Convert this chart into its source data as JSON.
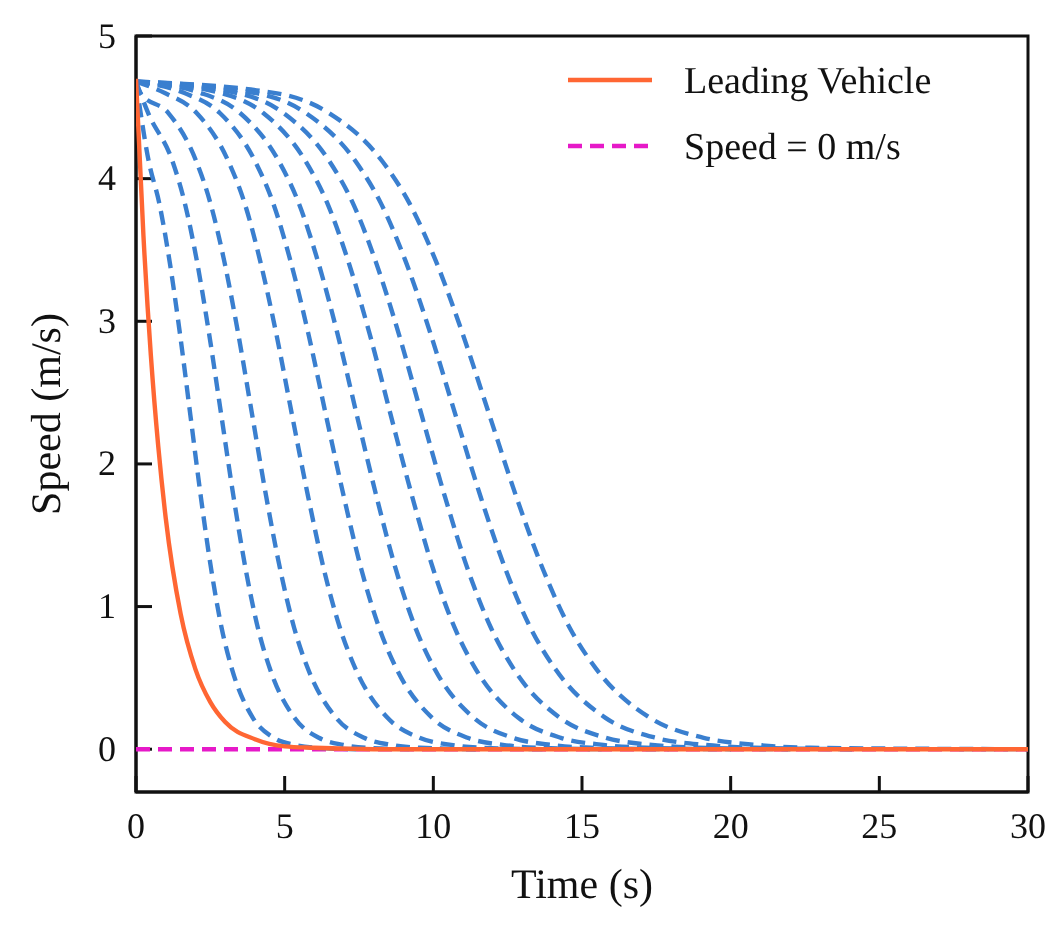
{
  "chart_data": {
    "type": "line",
    "xlabel": "Time (s)",
    "ylabel": "Speed (m/s)",
    "xlim": [
      0,
      30
    ],
    "ylim": [
      -0.3,
      5
    ],
    "xticks": [
      0,
      5,
      10,
      15,
      20,
      25,
      30
    ],
    "yticks": [
      0,
      1,
      2,
      3,
      4,
      5
    ],
    "grid": false,
    "ref_lines": [
      {
        "axis": "y",
        "value": 0,
        "label": "Speed = 0 m/s",
        "color": "#e619c8",
        "line_style": "dashed"
      }
    ],
    "legend": "top right",
    "marker": "none",
    "series": [
      {
        "name": "Leading Vehicle",
        "color": "#ff6633",
        "line_style": "solid",
        "x": [
          0,
          0.25,
          0.5,
          0.75,
          1,
          1.5,
          2,
          2.5,
          3,
          4,
          5,
          6,
          8,
          30
        ],
        "values": [
          4.7,
          3.6,
          2.76,
          2.12,
          1.62,
          0.95,
          0.56,
          0.33,
          0.19,
          0.07,
          0.02,
          0.01,
          0,
          0
        ]
      },
      {
        "color": "#3a7fcf",
        "line_style": "dashed",
        "x": [
          0,
          0.43,
          0.78,
          1.13,
          1.48,
          1.83,
          2.18,
          2.53,
          2.88,
          3.23,
          3.93,
          4.63,
          5.33,
          6.03,
          7.43
        ],
        "values": [
          4.68,
          4.12,
          3.83,
          3.42,
          2.91,
          2.34,
          1.77,
          1.26,
          0.85,
          0.56,
          0.22,
          0.08,
          0.03,
          0.01,
          0
        ]
      },
      {
        "color": "#3a7fcf",
        "line_style": "dashed",
        "x": [
          0,
          0.41,
          1.23,
          1.64,
          2.05,
          2.46,
          2.87,
          3.28,
          3.69,
          4.1,
          4.51,
          5.33,
          6.15,
          6.97,
          7.79,
          9.43
        ],
        "values": [
          4.68,
          4.46,
          4.12,
          3.83,
          3.42,
          2.91,
          2.34,
          1.77,
          1.26,
          0.85,
          0.56,
          0.22,
          0.08,
          0.03,
          0.01,
          0
        ]
      },
      {
        "color": "#3a7fcf",
        "line_style": "dashed",
        "x": [
          0,
          0.15,
          1.09,
          2.03,
          2.5,
          2.97,
          3.44,
          3.91,
          4.38,
          4.85,
          5.32,
          5.79,
          6.73,
          7.67,
          8.61,
          9.55,
          11.43
        ],
        "values": [
          4.68,
          4.6,
          4.46,
          4.12,
          3.83,
          3.42,
          2.91,
          2.34,
          1.77,
          1.26,
          0.85,
          0.56,
          0.22,
          0.08,
          0.03,
          0.01,
          0
        ]
      },
      {
        "color": "#3a7fcf",
        "line_style": "dashed",
        "x": [
          0,
          0.97,
          2.04,
          3.11,
          3.65,
          4.18,
          4.72,
          5.25,
          5.79,
          6.32,
          6.86,
          7.39,
          8.46,
          9.53,
          10.6,
          11.67,
          13.81
        ],
        "values": [
          4.68,
          4.6,
          4.46,
          4.12,
          3.83,
          3.42,
          2.91,
          2.34,
          1.77,
          1.26,
          0.85,
          0.56,
          0.22,
          0.08,
          0.03,
          0.01,
          0
        ]
      },
      {
        "color": "#3a7fcf",
        "line_style": "dashed",
        "x": [
          0,
          1.63,
          2.82,
          4.01,
          4.61,
          5.2,
          5.8,
          6.39,
          6.99,
          7.58,
          8.18,
          8.77,
          9.96,
          11.15,
          12.34,
          13.53,
          15.91
        ],
        "values": [
          4.68,
          4.6,
          4.46,
          4.12,
          3.83,
          3.42,
          2.91,
          2.34,
          1.77,
          1.26,
          0.85,
          0.56,
          0.22,
          0.08,
          0.03,
          0.01,
          0
        ]
      },
      {
        "color": "#3a7fcf",
        "line_style": "dashed",
        "x": [
          0,
          2.19,
          3.5,
          4.81,
          5.47,
          6.12,
          6.78,
          7.43,
          8.09,
          8.74,
          9.4,
          10.05,
          11.36,
          12.67,
          13.98,
          15.29,
          17.91
        ],
        "values": [
          4.68,
          4.6,
          4.46,
          4.12,
          3.83,
          3.42,
          2.91,
          2.34,
          1.77,
          1.26,
          0.85,
          0.56,
          0.22,
          0.08,
          0.03,
          0.01,
          0
        ]
      },
      {
        "color": "#3a7fcf",
        "line_style": "dashed",
        "x": [
          0,
          2.85,
          4.28,
          5.71,
          6.43,
          7.14,
          7.86,
          8.57,
          9.29,
          10,
          10.72,
          11.43,
          12.86,
          14.29,
          15.72,
          17.15,
          20.01
        ],
        "values": [
          4.68,
          4.6,
          4.46,
          4.12,
          3.83,
          3.42,
          2.91,
          2.34,
          1.77,
          1.26,
          0.85,
          0.56,
          0.22,
          0.08,
          0.03,
          0.01,
          0
        ]
      },
      {
        "color": "#3a7fcf",
        "line_style": "dashed",
        "x": [
          0,
          3.41,
          4.96,
          6.51,
          7.29,
          8.06,
          8.84,
          9.61,
          10.39,
          11.16,
          11.94,
          12.71,
          14.26,
          15.81,
          17.36,
          18.91,
          22.01
        ],
        "values": [
          4.68,
          4.6,
          4.46,
          4.12,
          3.83,
          3.42,
          2.91,
          2.34,
          1.77,
          1.26,
          0.85,
          0.56,
          0.22,
          0.08,
          0.03,
          0.01,
          0
        ]
      },
      {
        "color": "#3a7fcf",
        "line_style": "dashed",
        "x": [
          0,
          4.03,
          5.71,
          7.39,
          8.23,
          9.07,
          9.91,
          10.75,
          11.59,
          12.43,
          13.27,
          14.11,
          15.79,
          17.47,
          19.15,
          20.83,
          24.19
        ],
        "values": [
          4.68,
          4.6,
          4.46,
          4.12,
          3.83,
          3.42,
          2.91,
          2.34,
          1.77,
          1.26,
          0.85,
          0.56,
          0.22,
          0.08,
          0.03,
          0.01,
          0
        ]
      },
      {
        "color": "#3a7fcf",
        "line_style": "dashed",
        "x": [
          0,
          4.69,
          6.49,
          8.29,
          9.19,
          10.09,
          10.99,
          11.89,
          12.79,
          13.69,
          14.59,
          15.49,
          17.29,
          19.09,
          20.89,
          22.69,
          30
        ],
        "values": [
          4.68,
          4.6,
          4.46,
          4.12,
          3.83,
          3.42,
          2.91,
          2.34,
          1.77,
          1.26,
          0.85,
          0.56,
          0.22,
          0.08,
          0.03,
          0.01,
          0
        ]
      }
    ]
  }
}
